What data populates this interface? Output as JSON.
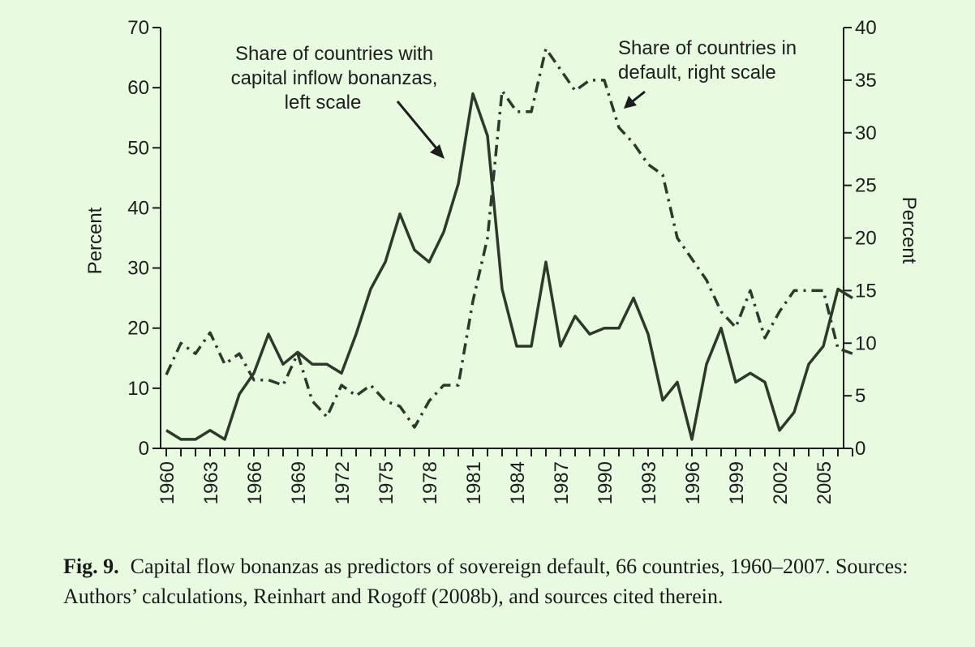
{
  "chart_data": {
    "type": "line",
    "x_tick_labels": [
      "1960",
      "1963",
      "1966",
      "1969",
      "1972",
      "1975",
      "1978",
      "1981",
      "1984",
      "1987",
      "1990",
      "1993",
      "1996",
      "1999",
      "2002",
      "2005"
    ],
    "left_axis": {
      "label": "Percent",
      "range": [
        0,
        70
      ],
      "ticks": [
        "0",
        "10",
        "20",
        "30",
        "40",
        "50",
        "60",
        "70"
      ]
    },
    "right_axis": {
      "label": "Percent",
      "range": [
        0,
        40
      ],
      "ticks": [
        "0",
        "5",
        "10",
        "15",
        "20",
        "25",
        "30",
        "35",
        "40"
      ]
    },
    "x_range": [
      1960,
      2007
    ],
    "series": [
      {
        "name": "Share of countries with capital inflow bonanzas, left scale",
        "axis": "left",
        "style": "solid",
        "x": [
          1960,
          1961,
          1962,
          1963,
          1964,
          1965,
          1966,
          1967,
          1968,
          1969,
          1970,
          1971,
          1972,
          1973,
          1974,
          1975,
          1976,
          1977,
          1978,
          1979,
          1980,
          1981,
          1982,
          1983,
          1984,
          1985,
          1986,
          1987,
          1988,
          1989,
          1990,
          1991,
          1992,
          1993,
          1994,
          1995,
          1996,
          1997,
          1998,
          1999,
          2000,
          2001,
          2002,
          2003,
          2004,
          2005,
          2006,
          2007
        ],
        "values": [
          3,
          1.5,
          1.5,
          3,
          1.5,
          9,
          12.5,
          19,
          14,
          16,
          14,
          14,
          12.5,
          19,
          26.5,
          31,
          39,
          33,
          31,
          36,
          44,
          59,
          52,
          26.5,
          17,
          17,
          31,
          17,
          22,
          19,
          20,
          20,
          25,
          19,
          8,
          11,
          1.5,
          14,
          20,
          11,
          12.5,
          11,
          3,
          6,
          14,
          17,
          26.5,
          25
        ]
      },
      {
        "name": "Share of countries in default, right scale",
        "axis": "right",
        "style": "dashdot",
        "x": [
          1960,
          1961,
          1962,
          1963,
          1964,
          1965,
          1966,
          1967,
          1968,
          1969,
          1970,
          1971,
          1972,
          1973,
          1974,
          1975,
          1976,
          1977,
          1978,
          1979,
          1980,
          1981,
          1982,
          1983,
          1984,
          1985,
          1986,
          1987,
          1988,
          1989,
          1990,
          1991,
          1992,
          1993,
          1994,
          1995,
          1996,
          1997,
          1998,
          1999,
          2000,
          2001,
          2002,
          2003,
          2004,
          2005,
          2006,
          2007
        ],
        "values": [
          7,
          10,
          9,
          11,
          8,
          9,
          6.5,
          6.5,
          6,
          9,
          4.5,
          3,
          6,
          5,
          6,
          4.5,
          4,
          2,
          4.5,
          6,
          6,
          14,
          20,
          34,
          32,
          32,
          38,
          36,
          34,
          35,
          35,
          30.5,
          29,
          27,
          26,
          20,
          18,
          16,
          13,
          11.5,
          15,
          10.5,
          13,
          15,
          15,
          15,
          9.5,
          9
        ]
      }
    ],
    "annotations": [
      "Share of countries with",
      "capital inflow bonanzas,",
      "left scale",
      "Share of countries in",
      "default, right scale"
    ]
  },
  "caption": {
    "label": "Fig. 9.",
    "text": "Capital flow bonanzas as predictors of sovereign default, 66 countries, 1960–2007. Sources: Authors’ calculations, Reinhart and Rogoff (2008b), and sources cited therein."
  }
}
